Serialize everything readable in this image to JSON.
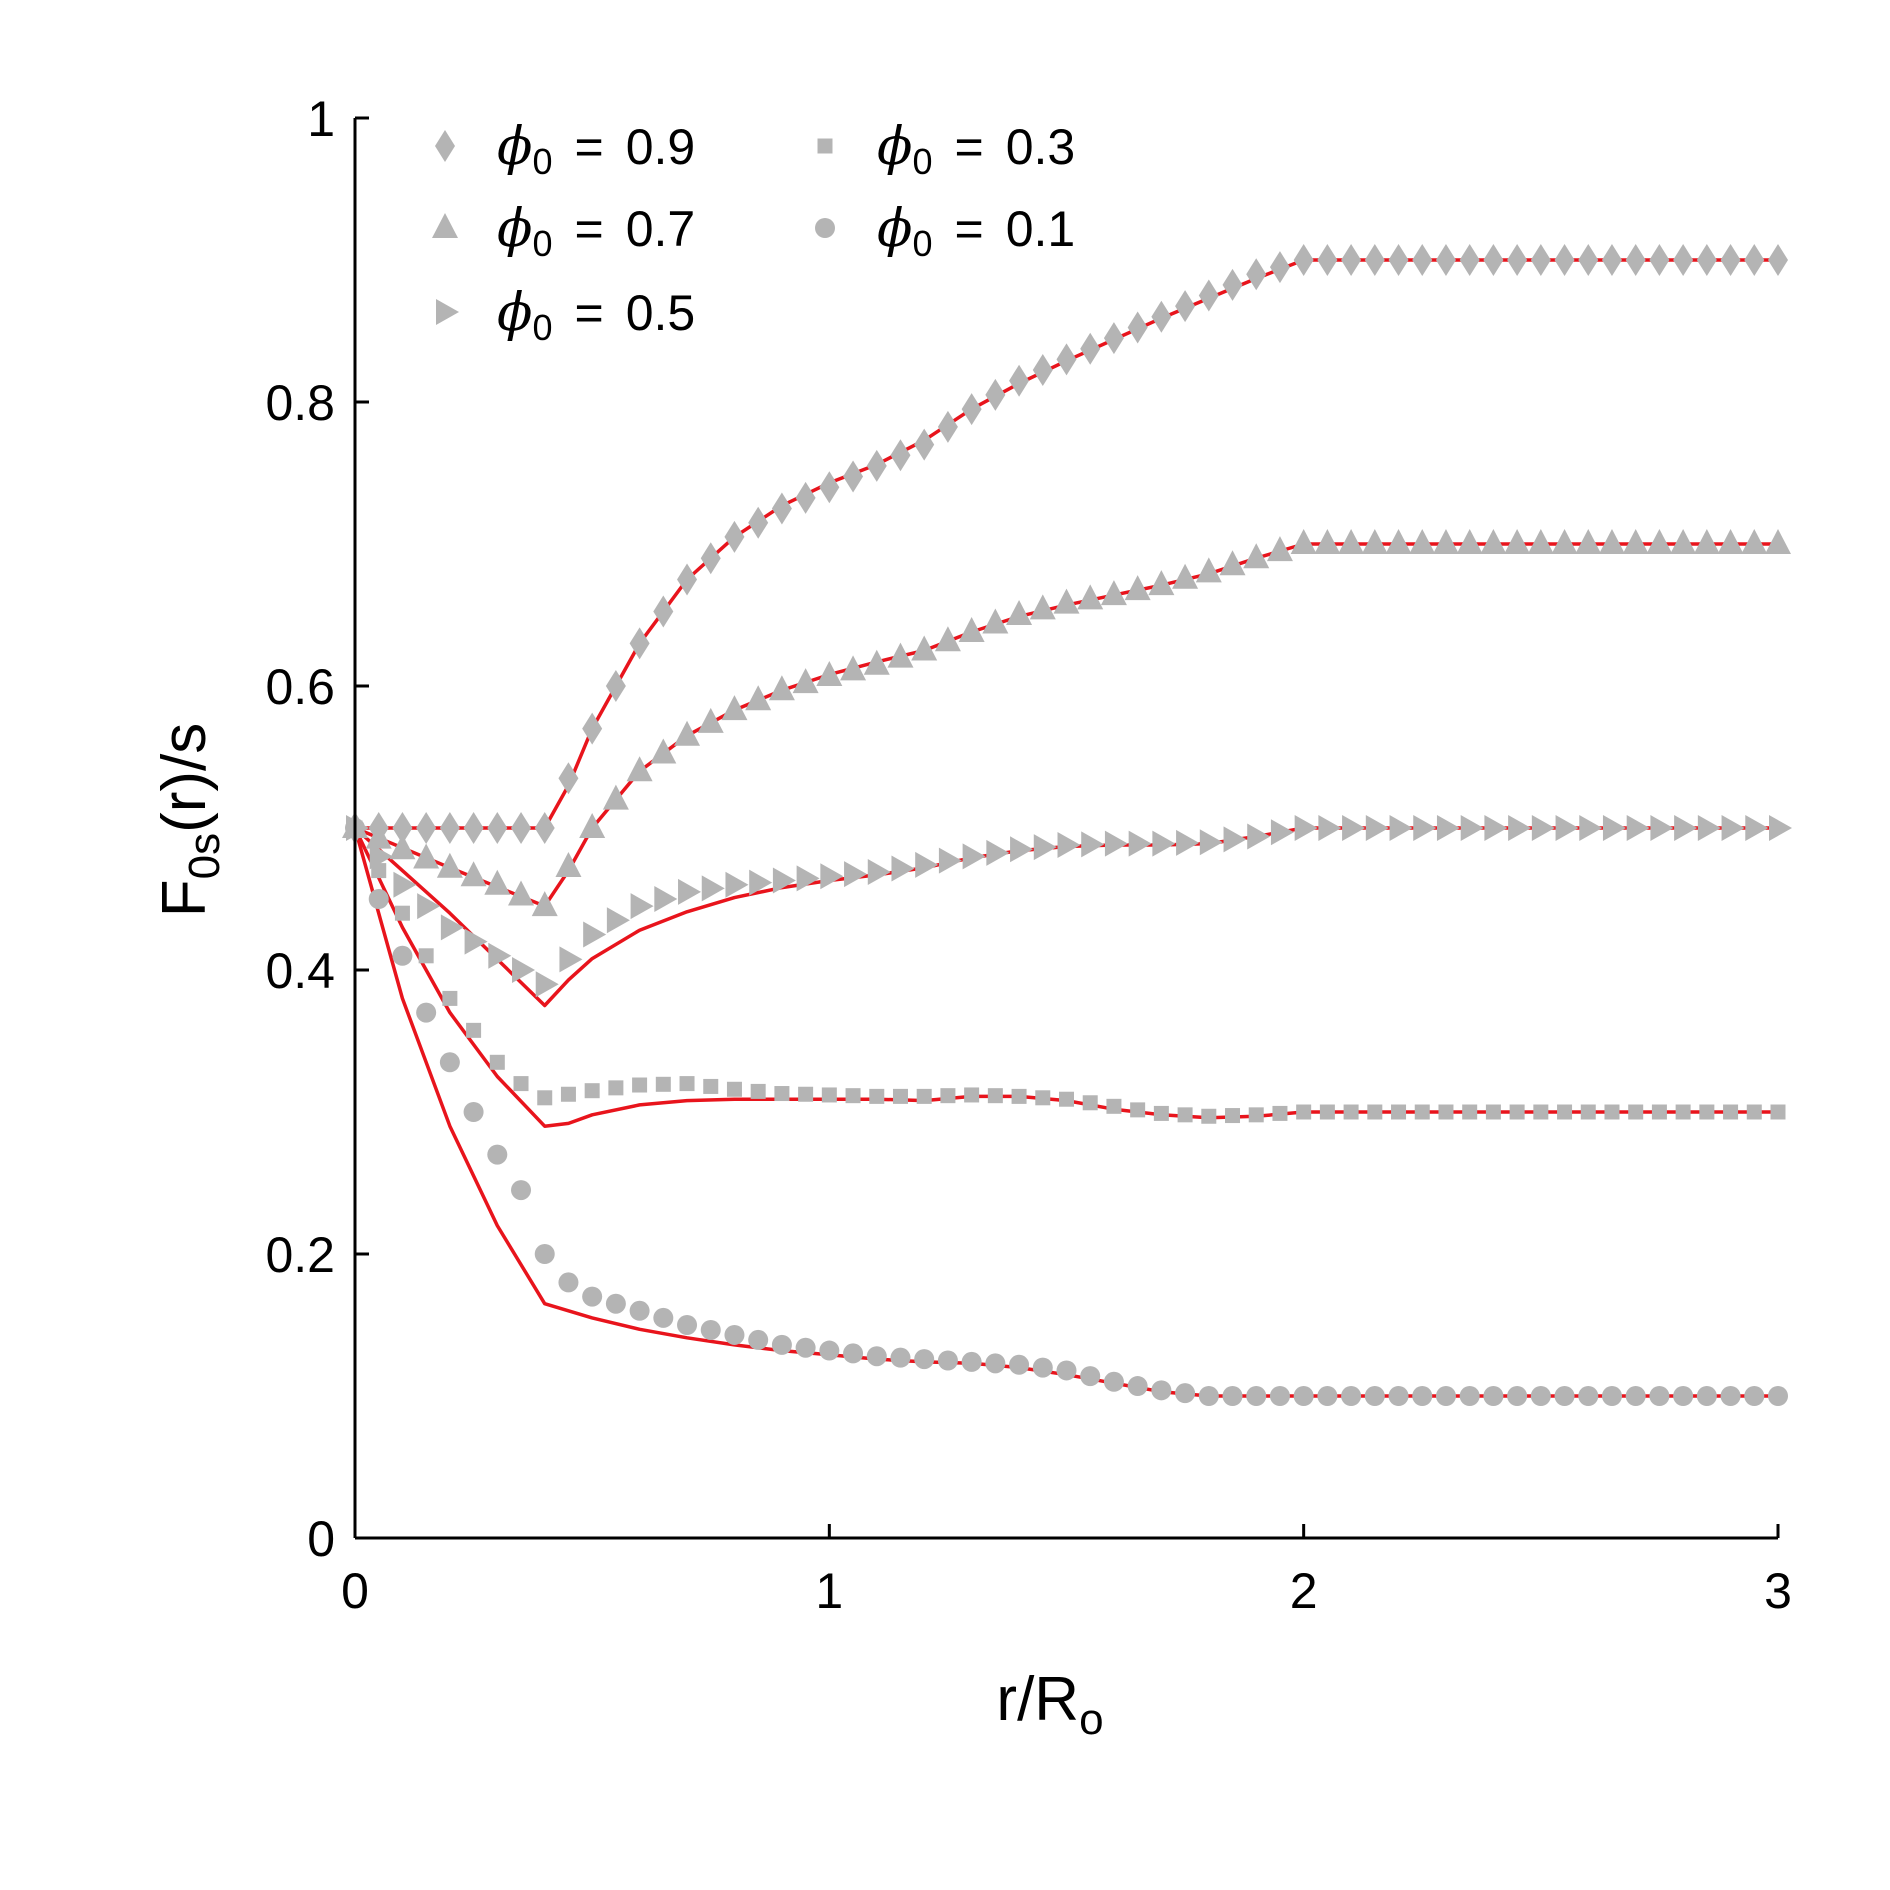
{
  "chart_data": {
    "type": "scatter",
    "title": "",
    "xlabel": "r/R",
    "xlabel_sub": "o",
    "ylabel": "F",
    "ylabel_sub": "0s",
    "ylabel_suffix": "(r)/s",
    "xlim": [
      0,
      3
    ],
    "ylim": [
      0,
      1
    ],
    "xticks": [
      0,
      1,
      2,
      3
    ],
    "yticks": [
      0,
      0.2,
      0.4,
      0.6,
      0.8,
      1
    ],
    "xtick_labels": [
      "0",
      "1",
      "2",
      "3"
    ],
    "ytick_labels": [
      "0",
      "0.2",
      "0.4",
      "0.6",
      "0.8",
      "1"
    ],
    "grid": false,
    "legend_position": "top-left",
    "marker_color": "#b4b4b4",
    "line_color": "#e8141c",
    "series": [
      {
        "name": "0.9",
        "legend_symbol": "ϕ",
        "legend_sub": "0",
        "legend_eq": "=",
        "marker": "diamond",
        "markers": [
          [
            0,
            0.5
          ],
          [
            0.1,
            0.5
          ],
          [
            0.2,
            0.5
          ],
          [
            0.3,
            0.5
          ],
          [
            0.4,
            0.5
          ],
          [
            0.45,
            0.535
          ],
          [
            0.5,
            0.57
          ],
          [
            0.6,
            0.63
          ],
          [
            0.7,
            0.675
          ],
          [
            0.8,
            0.705
          ],
          [
            0.9,
            0.725
          ],
          [
            1.0,
            0.74
          ],
          [
            1.1,
            0.755
          ],
          [
            1.2,
            0.77
          ],
          [
            1.3,
            0.795
          ],
          [
            1.4,
            0.815
          ],
          [
            1.5,
            0.83
          ],
          [
            1.6,
            0.845
          ],
          [
            1.7,
            0.86
          ],
          [
            1.8,
            0.875
          ],
          [
            1.9,
            0.89
          ],
          [
            2.0,
            0.9
          ],
          [
            2.2,
            0.9
          ],
          [
            2.4,
            0.9
          ],
          [
            2.6,
            0.9
          ],
          [
            2.8,
            0.9
          ],
          [
            3.0,
            0.9
          ]
        ],
        "curve": [
          [
            0,
            0.5
          ],
          [
            0.4,
            0.5
          ],
          [
            0.45,
            0.53
          ],
          [
            0.5,
            0.57
          ],
          [
            0.6,
            0.63
          ],
          [
            0.7,
            0.675
          ],
          [
            0.8,
            0.705
          ],
          [
            0.9,
            0.727
          ],
          [
            1.0,
            0.743
          ],
          [
            1.1,
            0.756
          ],
          [
            1.2,
            0.773
          ],
          [
            1.3,
            0.795
          ],
          [
            1.4,
            0.813
          ],
          [
            1.5,
            0.829
          ],
          [
            1.6,
            0.844
          ],
          [
            1.7,
            0.859
          ],
          [
            1.8,
            0.873
          ],
          [
            1.9,
            0.887
          ],
          [
            2.0,
            0.9
          ],
          [
            3.0,
            0.9
          ]
        ]
      },
      {
        "name": "0.7",
        "legend_symbol": "ϕ",
        "legend_sub": "0",
        "legend_eq": "=",
        "marker": "triangle-up",
        "markers": [
          [
            0,
            0.5
          ],
          [
            0.1,
            0.485
          ],
          [
            0.2,
            0.472
          ],
          [
            0.3,
            0.46
          ],
          [
            0.4,
            0.445
          ],
          [
            0.5,
            0.5
          ],
          [
            0.6,
            0.54
          ],
          [
            0.7,
            0.565
          ],
          [
            0.8,
            0.583
          ],
          [
            0.9,
            0.597
          ],
          [
            1.0,
            0.607
          ],
          [
            1.1,
            0.615
          ],
          [
            1.2,
            0.625
          ],
          [
            1.3,
            0.638
          ],
          [
            1.4,
            0.65
          ],
          [
            1.5,
            0.658
          ],
          [
            1.6,
            0.664
          ],
          [
            1.7,
            0.671
          ],
          [
            1.8,
            0.68
          ],
          [
            1.9,
            0.69
          ],
          [
            2.0,
            0.7
          ],
          [
            2.2,
            0.7
          ],
          [
            2.4,
            0.7
          ],
          [
            2.6,
            0.7
          ],
          [
            2.8,
            0.7
          ],
          [
            3.0,
            0.7
          ]
        ],
        "curve": [
          [
            0,
            0.5
          ],
          [
            0.2,
            0.472
          ],
          [
            0.4,
            0.445
          ],
          [
            0.45,
            0.47
          ],
          [
            0.5,
            0.5
          ],
          [
            0.6,
            0.54
          ],
          [
            0.7,
            0.565
          ],
          [
            0.8,
            0.583
          ],
          [
            0.9,
            0.597
          ],
          [
            1.0,
            0.608
          ],
          [
            1.1,
            0.617
          ],
          [
            1.2,
            0.625
          ],
          [
            1.3,
            0.638
          ],
          [
            1.4,
            0.649
          ],
          [
            1.5,
            0.657
          ],
          [
            1.6,
            0.664
          ],
          [
            1.7,
            0.671
          ],
          [
            1.8,
            0.679
          ],
          [
            1.9,
            0.69
          ],
          [
            2.0,
            0.7
          ],
          [
            3.0,
            0.7
          ]
        ]
      },
      {
        "name": "0.5",
        "legend_symbol": "ϕ",
        "legend_sub": "0",
        "legend_eq": "=",
        "marker": "triangle-right",
        "markers": [
          [
            0,
            0.5
          ],
          [
            0.1,
            0.46
          ],
          [
            0.2,
            0.43
          ],
          [
            0.3,
            0.41
          ],
          [
            0.4,
            0.39
          ],
          [
            0.5,
            0.425
          ],
          [
            0.6,
            0.445
          ],
          [
            0.7,
            0.455
          ],
          [
            0.8,
            0.46
          ],
          [
            0.9,
            0.463
          ],
          [
            1.0,
            0.466
          ],
          [
            1.1,
            0.469
          ],
          [
            1.2,
            0.474
          ],
          [
            1.3,
            0.48
          ],
          [
            1.4,
            0.485
          ],
          [
            1.5,
            0.488
          ],
          [
            1.6,
            0.489
          ],
          [
            1.7,
            0.489
          ],
          [
            1.8,
            0.49
          ],
          [
            1.9,
            0.494
          ],
          [
            2.0,
            0.5
          ],
          [
            2.2,
            0.5
          ],
          [
            2.4,
            0.5
          ],
          [
            2.6,
            0.5
          ],
          [
            2.8,
            0.5
          ],
          [
            3.0,
            0.5
          ]
        ],
        "curve": [
          [
            0,
            0.5
          ],
          [
            0.2,
            0.44
          ],
          [
            0.4,
            0.375
          ],
          [
            0.45,
            0.393
          ],
          [
            0.5,
            0.408
          ],
          [
            0.6,
            0.428
          ],
          [
            0.7,
            0.441
          ],
          [
            0.8,
            0.451
          ],
          [
            0.9,
            0.458
          ],
          [
            1.0,
            0.463
          ],
          [
            1.1,
            0.467
          ],
          [
            1.2,
            0.472
          ],
          [
            1.3,
            0.479
          ],
          [
            1.4,
            0.484
          ],
          [
            1.5,
            0.487
          ],
          [
            1.6,
            0.488
          ],
          [
            1.7,
            0.488
          ],
          [
            1.8,
            0.489
          ],
          [
            1.9,
            0.494
          ],
          [
            2.0,
            0.5
          ],
          [
            3.0,
            0.5
          ]
        ]
      },
      {
        "name": "0.3",
        "legend_symbol": "ϕ",
        "legend_sub": "0",
        "legend_eq": "=",
        "marker": "square",
        "markers": [
          [
            0,
            0.5
          ],
          [
            0.1,
            0.44
          ],
          [
            0.2,
            0.38
          ],
          [
            0.3,
            0.335
          ],
          [
            0.35,
            0.32
          ],
          [
            0.4,
            0.31
          ],
          [
            0.5,
            0.315
          ],
          [
            0.6,
            0.319
          ],
          [
            0.7,
            0.32
          ],
          [
            0.8,
            0.316
          ],
          [
            0.9,
            0.313
          ],
          [
            1.0,
            0.312
          ],
          [
            1.1,
            0.311
          ],
          [
            1.2,
            0.311
          ],
          [
            1.3,
            0.312
          ],
          [
            1.4,
            0.311
          ],
          [
            1.5,
            0.309
          ],
          [
            1.6,
            0.304
          ],
          [
            1.7,
            0.299
          ],
          [
            1.8,
            0.297
          ],
          [
            1.9,
            0.298
          ],
          [
            2.0,
            0.3
          ],
          [
            2.2,
            0.3
          ],
          [
            2.4,
            0.3
          ],
          [
            2.6,
            0.3
          ],
          [
            2.8,
            0.3
          ],
          [
            3.0,
            0.3
          ]
        ],
        "curve": [
          [
            0,
            0.5
          ],
          [
            0.1,
            0.43
          ],
          [
            0.2,
            0.37
          ],
          [
            0.3,
            0.325
          ],
          [
            0.4,
            0.29
          ],
          [
            0.45,
            0.292
          ],
          [
            0.5,
            0.298
          ],
          [
            0.6,
            0.305
          ],
          [
            0.7,
            0.308
          ],
          [
            0.8,
            0.309
          ],
          [
            0.9,
            0.309
          ],
          [
            1.0,
            0.309
          ],
          [
            1.1,
            0.309
          ],
          [
            1.2,
            0.308
          ],
          [
            1.3,
            0.311
          ],
          [
            1.4,
            0.311
          ],
          [
            1.5,
            0.308
          ],
          [
            1.6,
            0.302
          ],
          [
            1.7,
            0.298
          ],
          [
            1.8,
            0.296
          ],
          [
            1.9,
            0.297
          ],
          [
            2.0,
            0.3
          ],
          [
            3.0,
            0.3
          ]
        ]
      },
      {
        "name": "0.1",
        "legend_symbol": "ϕ",
        "legend_sub": "0",
        "legend_eq": "=",
        "marker": "circle",
        "markers": [
          [
            0,
            0.5
          ],
          [
            0.05,
            0.45
          ],
          [
            0.1,
            0.41
          ],
          [
            0.15,
            0.37
          ],
          [
            0.2,
            0.335
          ],
          [
            0.25,
            0.3
          ],
          [
            0.3,
            0.27
          ],
          [
            0.35,
            0.245
          ],
          [
            0.4,
            0.2
          ],
          [
            0.45,
            0.18
          ],
          [
            0.5,
            0.17
          ],
          [
            0.6,
            0.16
          ],
          [
            0.7,
            0.15
          ],
          [
            0.8,
            0.143
          ],
          [
            0.9,
            0.136
          ],
          [
            1.0,
            0.132
          ],
          [
            1.1,
            0.128
          ],
          [
            1.2,
            0.126
          ],
          [
            1.3,
            0.124
          ],
          [
            1.4,
            0.122
          ],
          [
            1.5,
            0.118
          ],
          [
            1.6,
            0.11
          ],
          [
            1.7,
            0.104
          ],
          [
            1.8,
            0.1
          ],
          [
            1.9,
            0.1
          ],
          [
            2.0,
            0.1
          ],
          [
            2.2,
            0.1
          ],
          [
            2.4,
            0.1
          ],
          [
            2.6,
            0.1
          ],
          [
            2.8,
            0.1
          ],
          [
            3.0,
            0.1
          ]
        ],
        "curve": [
          [
            0,
            0.5
          ],
          [
            0.1,
            0.38
          ],
          [
            0.2,
            0.29
          ],
          [
            0.3,
            0.22
          ],
          [
            0.4,
            0.165
          ],
          [
            0.5,
            0.155
          ],
          [
            0.6,
            0.147
          ],
          [
            0.7,
            0.141
          ],
          [
            0.8,
            0.136
          ],
          [
            0.9,
            0.132
          ],
          [
            1.0,
            0.129
          ],
          [
            1.1,
            0.126
          ],
          [
            1.2,
            0.124
          ],
          [
            1.3,
            0.123
          ],
          [
            1.4,
            0.12
          ],
          [
            1.5,
            0.115
          ],
          [
            1.6,
            0.109
          ],
          [
            1.7,
            0.103
          ],
          [
            1.8,
            0.1
          ],
          [
            2.0,
            0.1
          ],
          [
            3.0,
            0.1
          ]
        ]
      }
    ]
  }
}
